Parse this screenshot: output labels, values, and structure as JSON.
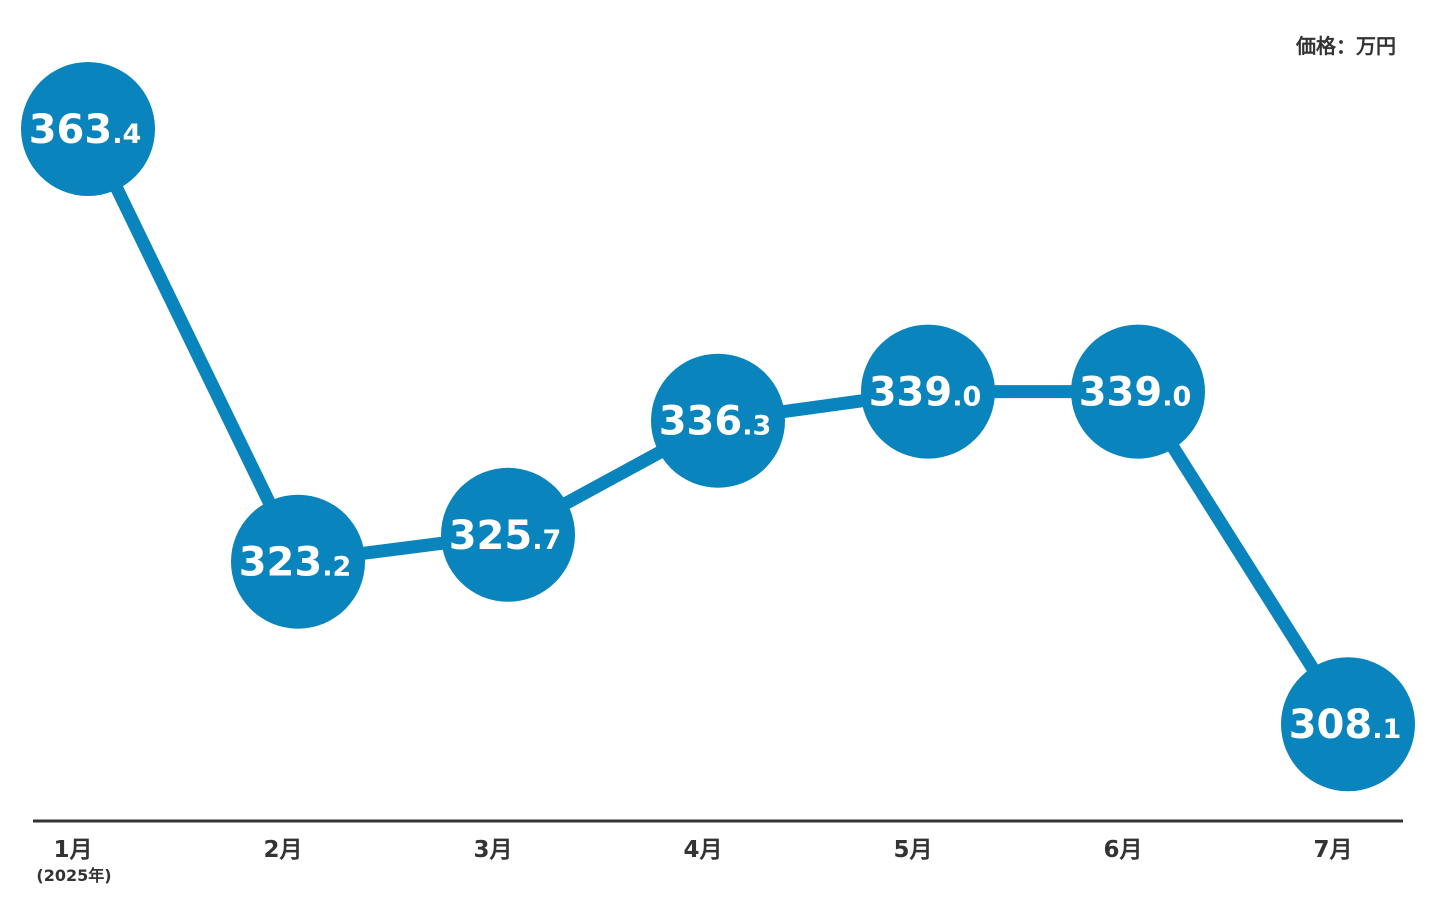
{
  "unit_label": "価格：万円",
  "colors": {
    "accent": "#0a84bc",
    "axis": "#333333",
    "text": "#333333",
    "label_text": "#ffffff"
  },
  "chart_data": {
    "type": "line",
    "categories": [
      "1月",
      "2月",
      "3月",
      "4月",
      "5月",
      "6月",
      "7月"
    ],
    "category_sublabels": [
      "(2025年)",
      "",
      "",
      "",
      "",
      "",
      ""
    ],
    "values": [
      363.4,
      323.2,
      325.7,
      336.3,
      339.0,
      339.0,
      308.1
    ],
    "value_labels": [
      "363.4",
      "323.2",
      "325.7",
      "336.3",
      "339.0",
      "339.0",
      "308.1"
    ],
    "title": "",
    "xlabel": "",
    "ylabel": "価格：万円",
    "ylim": [
      300,
      370
    ],
    "grid": false,
    "legend": "none"
  }
}
